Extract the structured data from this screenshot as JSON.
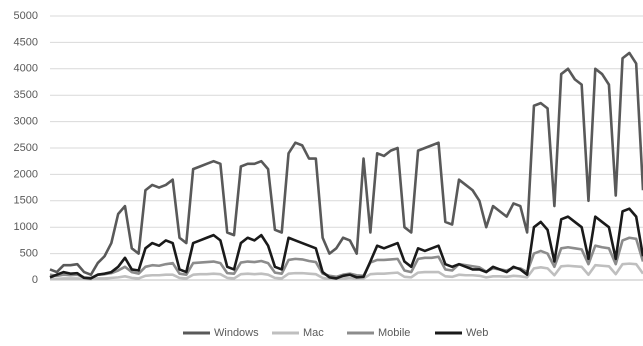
{
  "chart_data": {
    "type": "line",
    "ylim": [
      0,
      5000
    ],
    "yticks": [
      0,
      500,
      1000,
      1500,
      2000,
      2500,
      3000,
      3500,
      4000,
      4500,
      5000
    ],
    "grid": true,
    "legend": "bottom",
    "series": [
      {
        "name": "Windows",
        "color": "#595959",
        "values": [
          200,
          150,
          280,
          280,
          300,
          150,
          100,
          320,
          450,
          700,
          1250,
          1400,
          600,
          500,
          1700,
          1800,
          1750,
          1800,
          1900,
          800,
          700,
          2100,
          2150,
          2200,
          2250,
          2200,
          900,
          850,
          2150,
          2200,
          2200,
          2250,
          2100,
          950,
          900,
          2400,
          2600,
          2550,
          2300,
          2300,
          800,
          500,
          600,
          800,
          750,
          500,
          2300,
          900,
          2400,
          2350,
          2450,
          2500,
          1000,
          900,
          2450,
          2500,
          2550,
          2600,
          1100,
          1050,
          1900,
          1800,
          1700,
          1500,
          1000,
          1400,
          1300,
          1200,
          1450,
          1400,
          900,
          3300,
          3350,
          3250,
          1400,
          3900,
          4000,
          3800,
          3700,
          1500,
          4000,
          3900,
          3700,
          1600,
          4200,
          4300,
          4100,
          1700
        ]
      },
      {
        "name": "Mac",
        "color": "#bfbfbf",
        "values": [
          30,
          20,
          30,
          30,
          30,
          15,
          10,
          30,
          30,
          40,
          50,
          70,
          40,
          30,
          80,
          90,
          90,
          100,
          100,
          40,
          30,
          100,
          110,
          110,
          120,
          110,
          40,
          30,
          110,
          120,
          110,
          120,
          100,
          40,
          30,
          120,
          130,
          130,
          120,
          110,
          40,
          20,
          20,
          30,
          40,
          30,
          30,
          110,
          120,
          120,
          130,
          140,
          60,
          50,
          140,
          150,
          150,
          150,
          70,
          60,
          100,
          90,
          90,
          80,
          50,
          70,
          70,
          60,
          80,
          70,
          50,
          220,
          240,
          220,
          90,
          260,
          270,
          260,
          250,
          100,
          280,
          270,
          260,
          110,
          300,
          310,
          300,
          120
        ]
      },
      {
        "name": "Mobile",
        "color": "#8c8c8c",
        "values": [
          100,
          80,
          100,
          90,
          100,
          50,
          40,
          100,
          110,
          130,
          180,
          250,
          150,
          120,
          250,
          280,
          270,
          300,
          320,
          120,
          100,
          320,
          330,
          340,
          350,
          320,
          130,
          120,
          330,
          350,
          340,
          360,
          320,
          140,
          120,
          380,
          400,
          390,
          360,
          340,
          120,
          80,
          60,
          100,
          120,
          90,
          80,
          330,
          380,
          380,
          390,
          400,
          180,
          150,
          400,
          420,
          420,
          440,
          200,
          180,
          300,
          280,
          260,
          240,
          160,
          220,
          200,
          180,
          230,
          220,
          150,
          500,
          550,
          500,
          250,
          600,
          620,
          600,
          580,
          300,
          650,
          620,
          600,
          300,
          750,
          800,
          780,
          350
        ]
      },
      {
        "name": "Web",
        "color": "#1a1a1a",
        "values": [
          50,
          100,
          150,
          120,
          130,
          40,
          30,
          100,
          120,
          150,
          250,
          420,
          200,
          180,
          600,
          700,
          650,
          750,
          700,
          200,
          150,
          700,
          750,
          800,
          850,
          750,
          250,
          200,
          700,
          800,
          750,
          850,
          650,
          250,
          200,
          800,
          750,
          700,
          650,
          600,
          150,
          50,
          30,
          80,
          100,
          50,
          60,
          350,
          650,
          600,
          650,
          700,
          350,
          250,
          600,
          550,
          600,
          650,
          300,
          250,
          300,
          250,
          200,
          200,
          150,
          250,
          200,
          150,
          250,
          200,
          100,
          1000,
          1100,
          950,
          350,
          1150,
          1200,
          1100,
          1000,
          400,
          1200,
          1100,
          1000,
          400,
          1300,
          1350,
          1200,
          450
        ]
      }
    ]
  }
}
